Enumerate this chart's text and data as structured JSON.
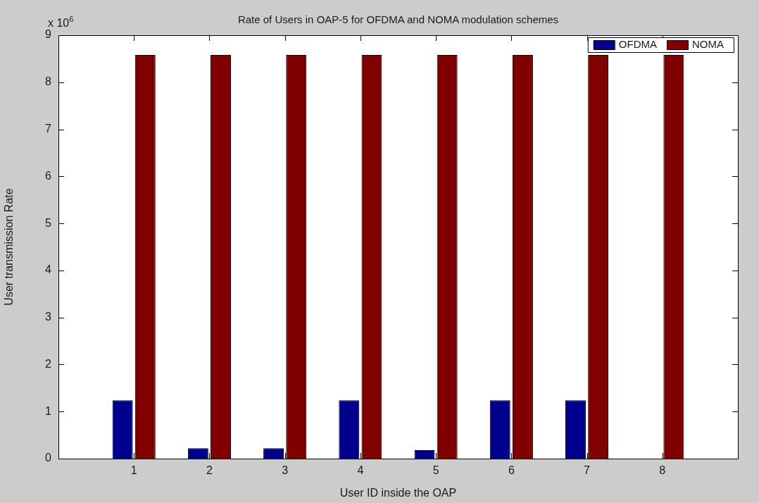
{
  "chart_data": {
    "type": "bar",
    "title": "Rate of Users in OAP-5 for OFDMA and NOMA modulation schemes",
    "xlabel": "User ID inside the OAP",
    "ylabel": "User transmission Rate",
    "annotations": [
      "x 10$^{6}$"
    ],
    "x": [
      1,
      2,
      3,
      4,
      5,
      6,
      7,
      8
    ],
    "xlim": [
      0,
      9
    ],
    "xticks": [
      1,
      2,
      3,
      4,
      5,
      6,
      7,
      8
    ],
    "ylim": [
      0,
      9
    ],
    "yticks": [
      0,
      1,
      2,
      3,
      4,
      5,
      6,
      7,
      8,
      9
    ],
    "series": [
      {
        "name": "OFDMA",
        "color": "#00008f",
        "values": [
          1.24,
          0.22,
          0.22,
          1.24,
          0.18,
          1.24,
          1.24,
          0
        ]
      },
      {
        "name": "NOMA",
        "color": "#800000",
        "values": [
          8.58,
          8.58,
          8.58,
          8.58,
          8.58,
          8.58,
          8.58,
          8.58
        ]
      }
    ],
    "grid": false,
    "legend": "top right"
  }
}
